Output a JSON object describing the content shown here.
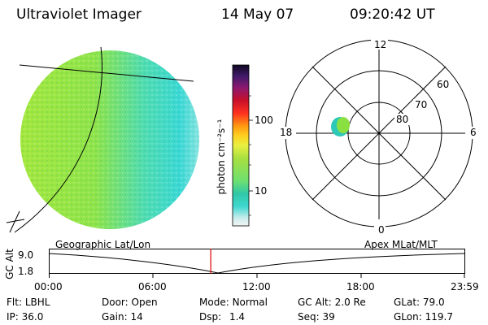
{
  "header": {
    "title": "Ultraviolet Imager",
    "date": "14 May 07",
    "time": "09:20:42 UT"
  },
  "colorbar": {
    "unit_label": "photon cm⁻²s⁻¹",
    "ticks": [
      "100",
      "10"
    ]
  },
  "polar": {
    "mlt_labels": {
      "top": "12",
      "left": "18",
      "right": "6",
      "bottom": "0"
    },
    "lat_labels": [
      "60",
      "70",
      "80"
    ]
  },
  "timeline": {
    "axis_label": "GC Alt",
    "y_ticks": [
      "9.0",
      "1.8"
    ],
    "left_label": "Geographic Lat/Lon",
    "right_label": "Apex MLat/MLT",
    "x_ticks": [
      "00:00",
      "06:00",
      "12:00",
      "18:00",
      "23:59"
    ],
    "marker_time_hours": 9.345
  },
  "info": {
    "col1": [
      {
        "key": "Flt:",
        "value": "LBHL"
      },
      {
        "key": "IP:",
        "value": "36.0"
      }
    ],
    "col2": [
      {
        "key": "Door:",
        "value": "Open"
      },
      {
        "key": "Gain:",
        "value": "14"
      }
    ],
    "col3": [
      {
        "key": "Mode:",
        "value": "Normal"
      },
      {
        "key": "Dsp:",
        "value": "1.4"
      }
    ],
    "col4": [
      {
        "key": "GC Alt:",
        "value": "2.0 Re"
      },
      {
        "key": "Seq:",
        "value": "39"
      }
    ],
    "col5": [
      {
        "key": "GLat:",
        "value": "79.0"
      },
      {
        "key": "GLon:",
        "value": "119.7"
      }
    ]
  },
  "colors": {
    "disk_green": "#9ee83a",
    "disk_cyan": "#40e0d0",
    "marker_red": "#e00000"
  }
}
